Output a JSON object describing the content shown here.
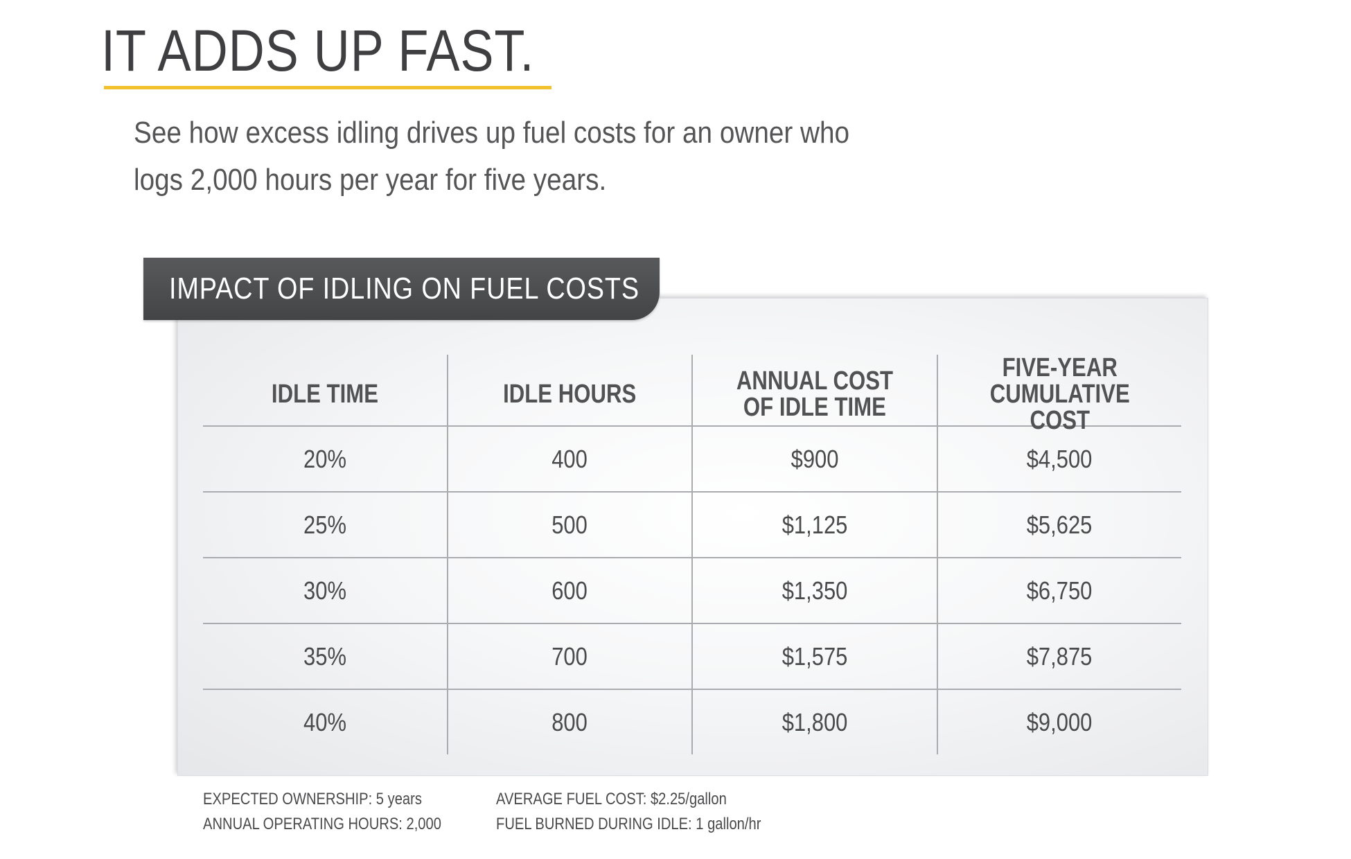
{
  "headline": "IT ADDS UP FAST.",
  "intro": "See how excess idling drives up fuel costs for an owner who logs 2,000 hours per year for five years.",
  "table": {
    "title": "IMPACT OF IDLING ON FUEL COSTS",
    "columns": [
      "IDLE TIME",
      "IDLE HOURS",
      "ANNUAL COST\nOF IDLE TIME",
      "FIVE-YEAR\nCUMULATIVE COST"
    ],
    "rows": [
      [
        "20%",
        "400",
        "$900",
        "$4,500"
      ],
      [
        "25%",
        "500",
        "$1,125",
        "$5,625"
      ],
      [
        "30%",
        "600",
        "$1,350",
        "$6,750"
      ],
      [
        "35%",
        "700",
        "$1,575",
        "$7,875"
      ],
      [
        "40%",
        "800",
        "$1,800",
        "$9,000"
      ]
    ]
  },
  "notes": {
    "expected_ownership_label": "EXPECTED OWNERSHIP:",
    "expected_ownership_value": "5 years",
    "annual_hours_label": "ANNUAL OPERATING HOURS:",
    "annual_hours_value": "2,000",
    "avg_fuel_cost_label": "AVERAGE FUEL COST:",
    "avg_fuel_cost_value": "$2.25/gallon",
    "fuel_idle_label": "FUEL BURNED DURING IDLE:",
    "fuel_idle_value": "1 gallon/hr"
  },
  "colors": {
    "accent": "#f2c12e",
    "tab": "#4b4c4e",
    "text": "#4a4a4c",
    "rule": "#a9abae"
  }
}
